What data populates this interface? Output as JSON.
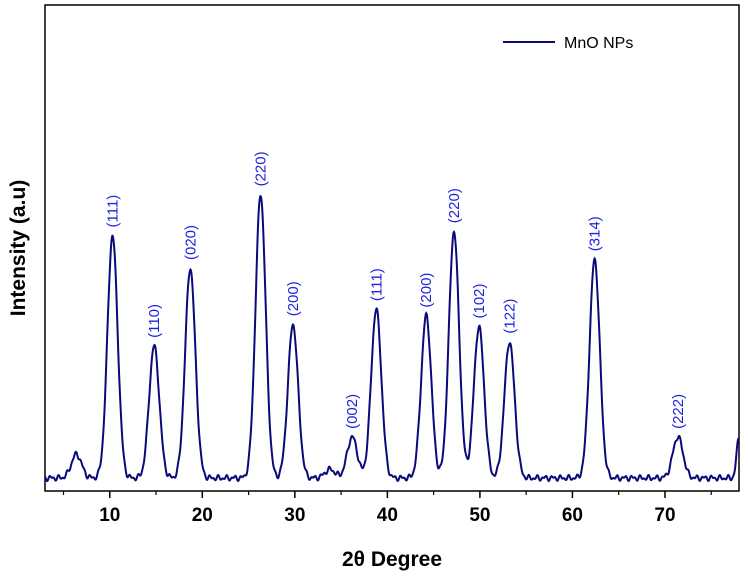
{
  "chart_data": {
    "type": "line",
    "xlabel": "2θ Degree",
    "ylabel": "Intensity (a.u)",
    "xlim": [
      3,
      78
    ],
    "ylim": [
      0,
      1
    ],
    "xticks": [
      10,
      20,
      30,
      40,
      50,
      60,
      70
    ],
    "grid": false,
    "legend_position": "top-right",
    "line_color": "#0a0a7a",
    "label_color": "#2020e0",
    "series": [
      {
        "name": "MnO NPs",
        "baseline": 0.0,
        "peaks": [
          {
            "x": 6.4,
            "y": 0.055,
            "label": ""
          },
          {
            "x": 10.3,
            "y": 0.56,
            "label": "(111)"
          },
          {
            "x": 14.8,
            "y": 0.305,
            "label": "(110)"
          },
          {
            "x": 18.7,
            "y": 0.485,
            "label": "(020)"
          },
          {
            "x": 26.3,
            "y": 0.655,
            "label": "(220)"
          },
          {
            "x": 29.8,
            "y": 0.355,
            "label": "(200)"
          },
          {
            "x": 33.8,
            "y": 0.02,
            "label": ""
          },
          {
            "x": 36.2,
            "y": 0.095,
            "label": "(002)"
          },
          {
            "x": 38.8,
            "y": 0.39,
            "label": "(111)"
          },
          {
            "x": 44.2,
            "y": 0.375,
            "label": "(200)"
          },
          {
            "x": 47.2,
            "y": 0.57,
            "label": "(220)"
          },
          {
            "x": 49.9,
            "y": 0.35,
            "label": "(102)"
          },
          {
            "x": 53.2,
            "y": 0.315,
            "label": "(122)"
          },
          {
            "x": 62.4,
            "y": 0.505,
            "label": "(314)"
          },
          {
            "x": 71.4,
            "y": 0.095,
            "label": "(222)"
          },
          {
            "x": 78,
            "y": 0.095,
            "label": ""
          }
        ]
      }
    ]
  }
}
